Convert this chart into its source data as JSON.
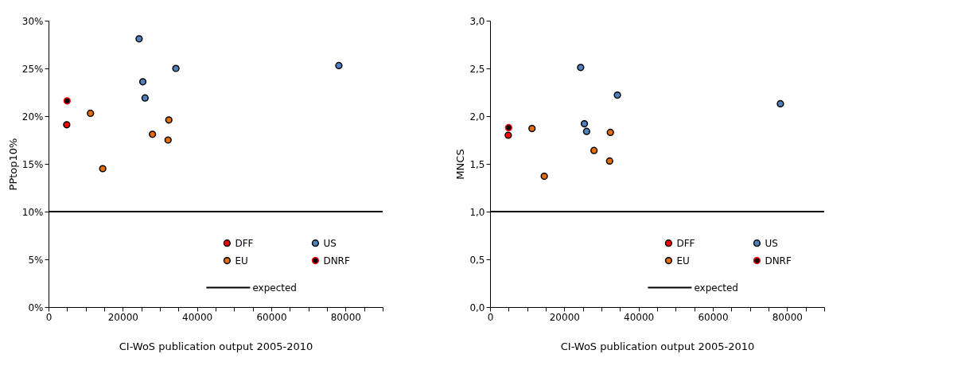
{
  "chart_data": [
    {
      "type": "scatter",
      "xlabel": "CI-WoS publication output 2005-2010",
      "ylabel": "PPtop10%",
      "marker": "circle",
      "grid": false,
      "legend": "bottom right",
      "xlim": [
        0,
        90000
      ],
      "xticks": [
        0,
        {
          "value": 5000,
          "label": null
        },
        {
          "value": 10000,
          "label": null
        },
        {
          "value": 15000,
          "label": null
        },
        20000,
        {
          "value": 25000,
          "label": null
        },
        {
          "value": 30000,
          "label": null
        },
        {
          "value": 35000,
          "label": null
        },
        40000,
        {
          "value": 45000,
          "label": null
        },
        {
          "value": 50000,
          "label": null
        },
        {
          "value": 55000,
          "label": null
        },
        60000,
        {
          "value": 65000,
          "label": null
        },
        {
          "value": 70000,
          "label": null
        },
        {
          "value": 75000,
          "label": null
        },
        80000,
        {
          "value": 85000,
          "label": null
        },
        {
          "value": 90000,
          "label": null
        }
      ],
      "ylim": [
        0,
        30
      ],
      "yticks": [
        {
          "value": 0,
          "label": "0%"
        },
        {
          "value": 5,
          "label": "5%"
        },
        {
          "value": 10,
          "label": "10%"
        },
        {
          "value": 15,
          "label": "15%"
        },
        {
          "value": 20,
          "label": "20%"
        },
        {
          "value": 25,
          "label": "25%"
        },
        {
          "value": 30,
          "label": "30%"
        }
      ],
      "series": [
        {
          "name": "DFF",
          "color": "#ff0000",
          "x": [
            4900
          ],
          "values": [
            19.1
          ]
        },
        {
          "name": "EU",
          "color": "#e46c0a",
          "x": [
            11300,
            14600,
            28000,
            32400,
            32200
          ],
          "values": [
            20.3,
            14.5,
            18.1,
            19.6,
            17.5
          ]
        },
        {
          "name": "US",
          "color": "#4f81bd",
          "x": [
            24400,
            25400,
            26000,
            34300,
            78200
          ],
          "values": [
            28.1,
            23.6,
            21.9,
            25.0,
            25.3
          ]
        },
        {
          "name": "DNRF",
          "color": "#000000",
          "x": [
            5000
          ],
          "values": [
            21.6
          ]
        }
      ],
      "ref_lines": [
        {
          "axis": "y",
          "value": 10,
          "label": "expected",
          "color": "#000000",
          "line_style": "solid"
        }
      ]
    },
    {
      "type": "scatter",
      "xlabel": "CI-WoS publication output 2005-2010",
      "ylabel": "MNCS",
      "marker": "circle",
      "grid": false,
      "legend": "bottom right",
      "xlim": [
        0,
        90000
      ],
      "xticks": [
        0,
        {
          "value": 5000,
          "label": null
        },
        {
          "value": 10000,
          "label": null
        },
        {
          "value": 15000,
          "label": null
        },
        20000,
        {
          "value": 25000,
          "label": null
        },
        {
          "value": 30000,
          "label": null
        },
        {
          "value": 35000,
          "label": null
        },
        40000,
        {
          "value": 45000,
          "label": null
        },
        {
          "value": 50000,
          "label": null
        },
        {
          "value": 55000,
          "label": null
        },
        60000,
        {
          "value": 65000,
          "label": null
        },
        {
          "value": 70000,
          "label": null
        },
        {
          "value": 75000,
          "label": null
        },
        80000,
        {
          "value": 85000,
          "label": null
        },
        {
          "value": 90000,
          "label": null
        }
      ],
      "ylim": [
        0,
        3
      ],
      "yticks": [
        {
          "value": 0,
          "label": "0,0"
        },
        {
          "value": 0.5,
          "label": "0,5"
        },
        {
          "value": 1,
          "label": "1,0"
        },
        {
          "value": 1.5,
          "label": "1,5"
        },
        {
          "value": 2,
          "label": "2,0"
        },
        {
          "value": 2.5,
          "label": "2,5"
        },
        {
          "value": 3,
          "label": "3,0"
        }
      ],
      "series": [
        {
          "name": "DFF",
          "color": "#ff0000",
          "x": [
            4900
          ],
          "values": [
            1.8
          ]
        },
        {
          "name": "EU",
          "color": "#e46c0a",
          "x": [
            11300,
            14600,
            28000,
            32400,
            32200
          ],
          "values": [
            1.87,
            1.37,
            1.64,
            1.83,
            1.53
          ]
        },
        {
          "name": "US",
          "color": "#4f81bd",
          "x": [
            24400,
            25400,
            26000,
            34300,
            78200
          ],
          "values": [
            2.51,
            1.92,
            1.84,
            2.22,
            2.13
          ]
        },
        {
          "name": "DNRF",
          "color": "#000000",
          "x": [
            5000
          ],
          "values": [
            1.88
          ]
        }
      ],
      "ref_lines": [
        {
          "axis": "y",
          "value": 1,
          "label": "expected",
          "color": "#000000",
          "line_style": "solid"
        }
      ]
    }
  ]
}
